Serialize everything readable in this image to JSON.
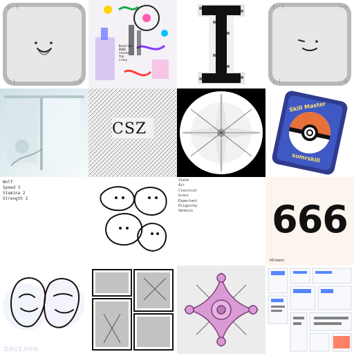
{
  "tiles": [
    {
      "id": "device-face-smile",
      "corner_label": "[:-)",
      "corner_label_alt": ":-)"
    },
    {
      "id": "colorful-collage",
      "mini_text": [
        "Dendrite",
        "0060",
        "stocks",
        "the",
        "crazy"
      ]
    },
    {
      "id": "pixel-letter-I"
    },
    {
      "id": "device-face-wink",
      "corner_label": "[:-)",
      "corner_label_alt": ":-)"
    },
    {
      "id": "window-photo"
    },
    {
      "id": "ascii-grid-drawing",
      "label": "CSZ"
    },
    {
      "id": "kaleidoscope-pattern"
    },
    {
      "id": "pokeball-card",
      "top_text": "Skill Master",
      "bottom_text": "sumrskill"
    },
    {
      "id": "character-stats",
      "lines": [
        "Wolf",
        "Speed 3",
        "Stamina 2",
        "Strength 3"
      ]
    },
    {
      "id": "line-doodle-faces"
    },
    {
      "id": "word-list",
      "lines": [
        "State",
        "Air",
        "Classical",
        "Grass",
        "Expectant",
        "Oligarchy",
        "Genesis"
      ]
    },
    {
      "id": "number-tile",
      "number": "666",
      "footer": "NFclaims"
    },
    {
      "id": "couple-line-portrait",
      "watermark": "DAVEANN"
    },
    {
      "id": "manga-page"
    },
    {
      "id": "pink-star-ornament"
    },
    {
      "id": "ui-screens-mosaic"
    }
  ],
  "colors": {
    "device_bg": "#b9b9b9",
    "device_inner": "#e9e9e9",
    "pokeball_red": "#e7713a",
    "card_blue": "#2f3b8d",
    "ornament_pink": "#d99bd3"
  }
}
